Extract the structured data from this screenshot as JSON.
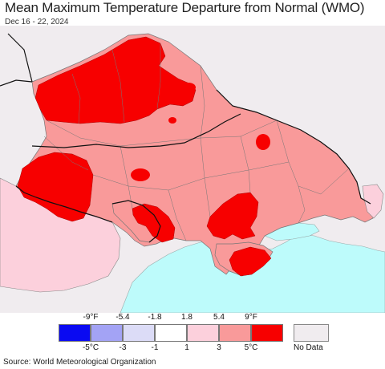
{
  "title": "Mean Maximum Temperature Departure from Normal (WMO)",
  "date_range": "Dec 16 - 22, 2024",
  "legend": {
    "f_ticks": [
      "-9°F",
      "-5.4",
      "-1.8",
      "1.8",
      "5.4",
      "9°F"
    ],
    "c_ticks": [
      "-5°C",
      "-3",
      "-1",
      "1",
      "3",
      "5°C"
    ],
    "colors": [
      "#0a0af2",
      "#a3a3f5",
      "#dcdcf7",
      "#ffffff",
      "#fcd0dc",
      "#f99a9a",
      "#f70000"
    ],
    "no_data_label": "No Data",
    "no_data_color": "#f0ecef"
  },
  "map_colors": {
    "no_data": "#f0ecef",
    "sea": "#bdfbfb",
    "warm_3_5": "#f99a9a",
    "warm_5_plus": "#f70000",
    "warm_1_3": "#fcd0dc"
  },
  "source": "Source: World Meteorological Organization"
}
